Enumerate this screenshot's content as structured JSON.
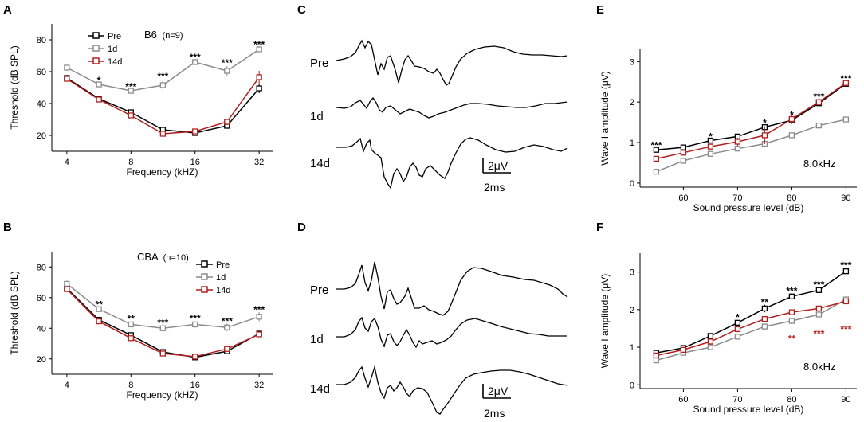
{
  "colors": {
    "pre": "#000000",
    "d1": "#8c8c8c",
    "d14": "#b11f1f"
  },
  "chart_data": [
    {
      "panel": "A",
      "type": "line",
      "annotation": "B6",
      "annotation_n": "(n=9)",
      "x_ticks": [
        "4",
        "8",
        "16",
        "32"
      ],
      "xlabel": "Frequency (kHZ)",
      "ylabel": "Threshold (dB SPL)",
      "y_ticks": [
        "20",
        "40",
        "60",
        "80"
      ],
      "ylim": [
        10,
        90
      ],
      "x": [
        4,
        5.66,
        8,
        11.3,
        16,
        22.6,
        32
      ],
      "legend": [
        "Pre",
        "1d",
        "14d"
      ],
      "legend_position": "top-left",
      "series": [
        {
          "name": "Pre",
          "key": "pre",
          "values": [
            56,
            43,
            34.5,
            23.5,
            21.5,
            26,
            49.5
          ],
          "errors": [
            1,
            1,
            1,
            1.5,
            1,
            1,
            3
          ]
        },
        {
          "name": "1d",
          "key": "d1",
          "values": [
            62.5,
            52,
            48,
            51.5,
            66,
            60.5,
            74
          ],
          "errors": [
            1,
            1,
            1,
            3.5,
            1.5,
            3,
            1
          ]
        },
        {
          "name": "14d",
          "key": "d14",
          "values": [
            55.5,
            42.5,
            32.5,
            21,
            22.5,
            28.5,
            56.5
          ],
          "errors": [
            1,
            1,
            1,
            1.5,
            1,
            2,
            4
          ]
        }
      ],
      "significance": [
        {
          "x": 5.66,
          "y": 55,
          "label": "*",
          "key": "pre"
        },
        {
          "x": 8,
          "y": 51,
          "label": "***",
          "key": "pre"
        },
        {
          "x": 11.3,
          "y": 57.5,
          "label": "***",
          "key": "pre"
        },
        {
          "x": 16,
          "y": 69.5,
          "label": "***",
          "key": "pre"
        },
        {
          "x": 22.6,
          "y": 66,
          "label": "***",
          "key": "pre"
        },
        {
          "x": 32,
          "y": 77.5,
          "label": "***",
          "key": "pre"
        }
      ]
    },
    {
      "panel": "B",
      "type": "line",
      "annotation": "CBA",
      "annotation_n": "(n=10)",
      "x_ticks": [
        "4",
        "8",
        "16",
        "32"
      ],
      "xlabel": "Frequency (kHZ)",
      "ylabel": "Threshold (dB SPL)",
      "y_ticks": [
        "20",
        "40",
        "60",
        "80"
      ],
      "ylim": [
        10,
        90
      ],
      "x": [
        4,
        5.66,
        8,
        11.3,
        16,
        22.6,
        32
      ],
      "legend": [
        "Pre",
        "1d",
        "14d"
      ],
      "legend_position": "top-right",
      "series": [
        {
          "name": "Pre",
          "key": "pre",
          "values": [
            66,
            45.5,
            35.5,
            24.5,
            21,
            25,
            36.5
          ],
          "errors": [
            1,
            1,
            1,
            1,
            1,
            1,
            1
          ]
        },
        {
          "name": "1d",
          "key": "d1",
          "values": [
            69,
            52.5,
            42.5,
            40,
            42.5,
            40.5,
            47.5
          ],
          "errors": [
            2,
            1.5,
            1.5,
            2.5,
            2,
            2.5,
            3
          ]
        },
        {
          "name": "14d",
          "key": "d14",
          "values": [
            65.5,
            44.5,
            33.5,
            23.5,
            21.5,
            26.5,
            36
          ],
          "errors": [
            1,
            1,
            1,
            1,
            1,
            1,
            1
          ]
        }
      ],
      "significance": [
        {
          "x": 5.66,
          "y": 56,
          "label": "**",
          "key": "pre"
        },
        {
          "x": 8,
          "y": 46.5,
          "label": "**",
          "key": "pre"
        },
        {
          "x": 11.3,
          "y": 44,
          "label": "***",
          "key": "pre"
        },
        {
          "x": 16,
          "y": 47,
          "label": "***",
          "key": "pre"
        },
        {
          "x": 22.6,
          "y": 45,
          "label": "***",
          "key": "pre"
        },
        {
          "x": 32,
          "y": 52.5,
          "label": "***",
          "key": "pre"
        }
      ]
    },
    {
      "panel": "E",
      "type": "line",
      "annotation": "8.0kHz",
      "x_ticks": [
        "60",
        "70",
        "80",
        "90"
      ],
      "xlabel": "Sound pressure level (dB)",
      "ylabel": "Wave I amplitude (μV)",
      "y_ticks": [
        "0",
        "1",
        "2",
        "3"
      ],
      "ylim": [
        -0.1,
        3.3
      ],
      "x": [
        55,
        60,
        65,
        70,
        75,
        80,
        85,
        90
      ],
      "series": [
        {
          "name": "Pre",
          "key": "pre",
          "values": [
            0.82,
            0.88,
            1.05,
            1.15,
            1.38,
            1.55,
            1.97,
            2.45
          ],
          "errors": [
            0.05,
            0.07,
            0.06,
            0.05,
            0.07,
            0.08,
            0.1,
            0.07
          ]
        },
        {
          "name": "1d",
          "key": "d1",
          "values": [
            0.28,
            0.55,
            0.72,
            0.85,
            0.97,
            1.18,
            1.42,
            1.57
          ],
          "errors": [
            0.06,
            0.06,
            0.06,
            0.06,
            0.06,
            0.06,
            0.05,
            0.05
          ]
        },
        {
          "name": "14d",
          "key": "d14",
          "values": [
            0.6,
            0.75,
            0.9,
            1.02,
            1.18,
            1.58,
            2.0,
            2.47
          ],
          "errors": [
            0.05,
            0.06,
            0.06,
            0.1,
            0.22,
            0.12,
            0.1,
            0.07
          ]
        }
      ],
      "significance": [
        {
          "x": 55,
          "y": 0.95,
          "label": "***",
          "key": "pre"
        },
        {
          "x": 65,
          "y": 1.17,
          "label": "*",
          "key": "pre"
        },
        {
          "x": 75,
          "y": 1.5,
          "label": "*",
          "key": "pre"
        },
        {
          "x": 80,
          "y": 1.7,
          "label": "*",
          "key": "pre"
        },
        {
          "x": 85,
          "y": 2.15,
          "label": "***",
          "key": "pre"
        },
        {
          "x": 90,
          "y": 2.6,
          "label": "***",
          "key": "pre"
        }
      ]
    },
    {
      "panel": "F",
      "type": "line",
      "annotation": "8.0kHz",
      "x_ticks": [
        "60",
        "70",
        "80",
        "90"
      ],
      "xlabel": "Sound pressure level (dB)",
      "ylabel": "Wave I amplitude (μV)",
      "y_ticks": [
        "0",
        "1",
        "2",
        "3"
      ],
      "ylim": [
        -0.1,
        3.5
      ],
      "x": [
        55,
        60,
        65,
        70,
        75,
        80,
        85,
        90
      ],
      "series": [
        {
          "name": "Pre",
          "key": "pre",
          "values": [
            0.85,
            0.98,
            1.3,
            1.65,
            2.03,
            2.35,
            2.52,
            3.02
          ],
          "errors": [
            0.05,
            0.05,
            0.07,
            0.07,
            0.1,
            0.08,
            0.07,
            0.07
          ]
        },
        {
          "name": "1d",
          "key": "d1",
          "values": [
            0.65,
            0.85,
            1.0,
            1.28,
            1.55,
            1.7,
            1.87,
            2.27
          ],
          "errors": [
            0.07,
            0.07,
            0.06,
            0.08,
            0.08,
            0.08,
            0.08,
            0.08
          ]
        },
        {
          "name": "14d",
          "key": "d14",
          "values": [
            0.78,
            0.93,
            1.15,
            1.48,
            1.75,
            1.93,
            2.03,
            2.22
          ],
          "errors": [
            0.05,
            0.05,
            0.06,
            0.08,
            0.08,
            0.06,
            0.06,
            0.06
          ]
        }
      ],
      "significance": [
        {
          "x": 70,
          "y": 1.82,
          "label": "*",
          "key": "pre"
        },
        {
          "x": 75,
          "y": 2.22,
          "label": "**",
          "key": "pre"
        },
        {
          "x": 80,
          "y": 2.52,
          "label": "***",
          "key": "pre"
        },
        {
          "x": 85,
          "y": 2.68,
          "label": "***",
          "key": "pre"
        },
        {
          "x": 90,
          "y": 3.2,
          "label": "***",
          "key": "pre"
        },
        {
          "x": 80,
          "y": 1.25,
          "label": "**",
          "key": "d14"
        },
        {
          "x": 85,
          "y": 1.38,
          "label": "***",
          "key": "d14"
        },
        {
          "x": 90,
          "y": 1.5,
          "label": "***",
          "key": "d14"
        }
      ]
    }
  ],
  "traces": [
    {
      "panel": "C",
      "labels": [
        "Pre",
        "1d",
        "14d"
      ],
      "scale_voltage": "2μV",
      "scale_time": "2ms"
    },
    {
      "panel": "D",
      "labels": [
        "Pre",
        "1d",
        "14d"
      ],
      "scale_voltage": "2μV",
      "scale_time": "2ms"
    }
  ]
}
